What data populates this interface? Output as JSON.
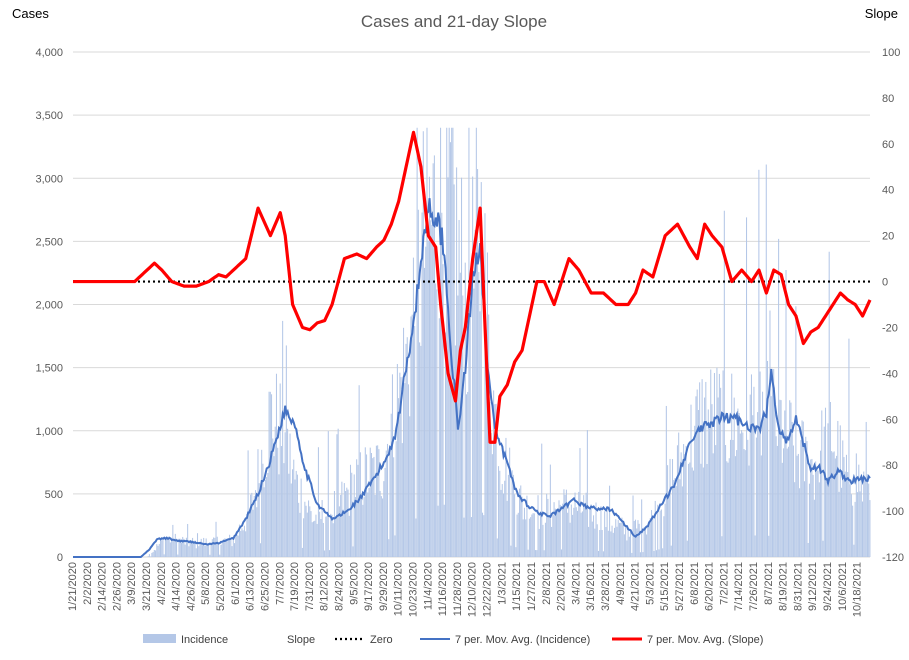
{
  "chart_data": {
    "type": "bar",
    "title": "Cases and 21-day Slope",
    "y_left_label": "Cases",
    "y_right_label": "Slope",
    "y_left_lim": [
      0,
      4000
    ],
    "y_right_lim": [
      -120,
      100
    ],
    "y_left_ticks": [
      "0",
      "500",
      "1,000",
      "1,500",
      "2,000",
      "2,500",
      "3,000",
      "3,500",
      "4,000"
    ],
    "y_right_ticks": [
      "-120",
      "-100",
      "-80",
      "-60",
      "-40",
      "-20",
      "0",
      "20",
      "40",
      "60",
      "80",
      "100"
    ],
    "x_tick_labels": [
      "1/21/2020",
      "2/2/2020",
      "2/14/2020",
      "2/26/2020",
      "3/9/2020",
      "3/21/2020",
      "4/2/2020",
      "4/14/2020",
      "4/26/2020",
      "5/8/2020",
      "5/20/2020",
      "6/1/2020",
      "6/13/2020",
      "6/25/2020",
      "7/7/2020",
      "7/19/2020",
      "7/31/2020",
      "8/12/2020",
      "8/24/2020",
      "9/5/2020",
      "9/17/2020",
      "9/29/2020",
      "10/11/2020",
      "10/23/2020",
      "11/4/2020",
      "11/16/2020",
      "11/28/2020",
      "12/10/2020",
      "12/22/2020",
      "1/3/2021",
      "1/15/2021",
      "1/27/2021",
      "2/8/2021",
      "2/20/2021",
      "3/4/2021",
      "3/16/2021",
      "3/28/2021",
      "4/9/2021",
      "4/21/2021",
      "5/3/2021",
      "5/15/2021",
      "5/27/2021",
      "6/8/2021",
      "6/20/2021",
      "7/2/2021",
      "7/14/2021",
      "7/26/2021",
      "8/7/2021",
      "8/19/2021",
      "8/31/2021",
      "9/12/2021",
      "9/24/2021",
      "10/6/2021",
      "10/18/2021"
    ],
    "grid": true,
    "legend_position": "bottom",
    "colors": {
      "incidence": "#b4c7e7",
      "mov_avg_incidence": "#4472c4",
      "mov_avg_slope": "#ff0000",
      "zero": "#000000",
      "grid": "#d9d9d9",
      "tick_text": "#595959"
    },
    "legend": [
      "Incidence",
      "Slope",
      "Zero",
      "7 per. Mov. Avg. (Incidence)",
      "7 per. Mov. Avg. (Slope)"
    ],
    "incidence_profile": {
      "description_points_x_index": [
        0,
        60,
        75,
        85,
        100,
        130,
        145,
        160,
        170,
        180,
        195,
        215,
        230,
        250,
        270,
        285,
        295,
        305,
        315,
        320,
        330,
        340,
        345,
        355,
        365,
        380,
        395,
        410,
        430,
        450,
        470,
        490,
        510,
        525,
        540,
        555,
        570,
        585,
        600,
        615,
        625,
        635,
        640,
        646
      ],
      "cases": [
        0,
        0,
        150,
        130,
        110,
        130,
        400,
        1100,
        1000,
        600,
        300,
        400,
        600,
        700,
        1500,
        2500,
        2700,
        2800,
        2200,
        1900,
        2600,
        1300,
        900,
        600,
        400,
        350,
        400,
        400,
        300,
        200,
        300,
        700,
        1100,
        1100,
        1050,
        1150,
        1100,
        850,
        700,
        1000,
        650,
        650,
        550,
        600
      ]
    },
    "mov_avg_incidence": {
      "x_index": [
        0,
        55,
        62,
        68,
        76,
        84,
        96,
        108,
        118,
        130,
        140,
        150,
        160,
        166,
        172,
        180,
        188,
        198,
        210,
        222,
        234,
        244,
        254,
        262,
        270,
        278,
        284,
        288,
        294,
        300,
        306,
        312,
        318,
        324,
        330,
        336,
        342,
        350,
        360,
        370,
        378,
        386,
        396,
        406,
        416,
        426,
        436,
        446,
        456,
        466,
        476,
        486,
        496,
        506,
        516,
        526,
        536,
        546,
        556,
        562,
        566,
        572,
        580,
        586,
        592,
        598,
        604,
        612,
        620,
        630,
        640,
        646
      ],
      "cases": [
        0,
        0,
        60,
        140,
        150,
        130,
        120,
        100,
        110,
        150,
        300,
        500,
        770,
        980,
        1170,
        1050,
        700,
        420,
        300,
        360,
        480,
        620,
        780,
        1000,
        1500,
        2000,
        2500,
        2780,
        2700,
        2500,
        1700,
        1000,
        1500,
        2200,
        2500,
        1500,
        1000,
        800,
        500,
        400,
        350,
        320,
        380,
        450,
        400,
        380,
        380,
        270,
        160,
        250,
        400,
        550,
        800,
        1000,
        1050,
        1100,
        1100,
        1050,
        1000,
        1150,
        1450,
        1000,
        900,
        1100,
        900,
        700,
        720,
        600,
        680,
        600,
        620,
        620
      ]
    },
    "mov_avg_slope": {
      "x_index": [
        0,
        50,
        60,
        66,
        72,
        80,
        90,
        100,
        110,
        118,
        124,
        130,
        140,
        150,
        160,
        168,
        172,
        178,
        186,
        192,
        198,
        204,
        210,
        220,
        230,
        238,
        246,
        252,
        258,
        264,
        270,
        276,
        282,
        288,
        294,
        298,
        304,
        310,
        314,
        318,
        324,
        330,
        334,
        338,
        342,
        346,
        352,
        358,
        364,
        370,
        376,
        382,
        386,
        390,
        396,
        402,
        410,
        420,
        430,
        440,
        450,
        456,
        462,
        470,
        480,
        490,
        500,
        506,
        512,
        518,
        526,
        534,
        542,
        550,
        556,
        562,
        568,
        574,
        580,
        586,
        592,
        598,
        604,
        610,
        616,
        622,
        628,
        634,
        640,
        646
      ],
      "slope": [
        0,
        0,
        5,
        8,
        5,
        0,
        -2,
        -2,
        0,
        3,
        2,
        5,
        10,
        32,
        20,
        30,
        20,
        -10,
        -20,
        -21,
        -18,
        -17,
        -10,
        10,
        12,
        10,
        15,
        18,
        25,
        35,
        50,
        65,
        50,
        20,
        15,
        -10,
        -40,
        -52,
        -30,
        -20,
        10,
        32,
        -20,
        -70,
        -70,
        -50,
        -45,
        -35,
        -30,
        -15,
        0,
        0,
        -5,
        -10,
        0,
        10,
        5,
        -5,
        -5,
        -10,
        -10,
        -5,
        5,
        2,
        20,
        25,
        15,
        10,
        25,
        20,
        15,
        0,
        5,
        0,
        5,
        -5,
        5,
        3,
        -10,
        -15,
        -27,
        -22,
        -20,
        -15,
        -10,
        -5,
        -8,
        -10,
        -15,
        -8
      ]
    },
    "n_days": 647
  }
}
